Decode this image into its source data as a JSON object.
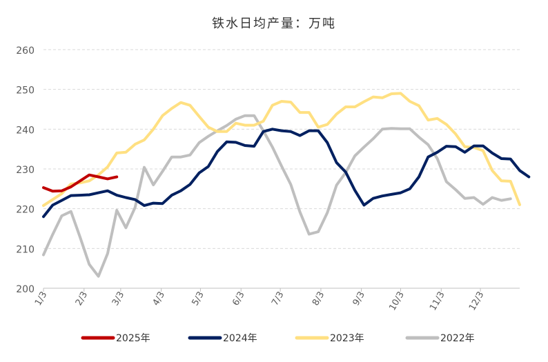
{
  "chart_data": {
    "type": "line",
    "title": "铁水日均产量：万吨",
    "xlabel": "",
    "ylabel": "",
    "ylim": [
      200,
      260
    ],
    "yticks": [
      200,
      210,
      220,
      230,
      240,
      250,
      260
    ],
    "xlim": [
      0,
      52
    ],
    "x_tick_positions": [
      0,
      4.43,
      8.43,
      12.86,
      17.14,
      21.57,
      25.86,
      30.29,
      34.71,
      39.0,
      43.43,
      47.71
    ],
    "x_tick_labels": [
      "1/3",
      "2/3",
      "3/3",
      "4/3",
      "5/3",
      "6/3",
      "7/3",
      "8/3",
      "9/3",
      "10/3",
      "11/3",
      "12/3"
    ],
    "grid": true,
    "legend_position": "bottom",
    "series": [
      {
        "name": "2025年",
        "color": "#C00000",
        "values": [
          225.3,
          224.4,
          224.5,
          225.5,
          227.0,
          228.5,
          228.0,
          227.5,
          228.0
        ]
      },
      {
        "name": "2024年",
        "color": "#002060",
        "values": [
          218.0,
          220.9,
          222.1,
          223.3,
          223.4,
          223.5,
          224.0,
          224.5,
          223.4,
          222.8,
          222.3,
          220.8,
          221.4,
          221.3,
          223.4,
          224.5,
          226.1,
          229.0,
          230.6,
          234.4,
          236.8,
          236.7,
          235.9,
          235.7,
          239.4,
          240.0,
          239.6,
          239.4,
          238.4,
          239.6,
          239.6,
          236.6,
          231.6,
          229.2,
          224.6,
          220.9,
          222.6,
          223.2,
          223.6,
          224.0,
          225.0,
          228.0,
          233.0,
          234.2,
          235.7,
          235.6,
          234.2,
          235.8,
          235.8,
          234.0,
          232.6,
          232.5,
          229.6,
          228.0
        ]
      },
      {
        "name": "2023年",
        "color": "#FFE082",
        "values": [
          220.8,
          222.3,
          223.8,
          226.2,
          226.5,
          227.0,
          228.5,
          230.5,
          234.0,
          234.2,
          236.2,
          237.3,
          240.0,
          243.4,
          245.2,
          246.7,
          246.0,
          243.2,
          240.5,
          239.4,
          239.4,
          241.5,
          241.0,
          241.0,
          242.0,
          246.0,
          247.0,
          246.8,
          244.2,
          244.2,
          240.5,
          241.2,
          243.8,
          245.6,
          245.6,
          246.9,
          248.1,
          247.9,
          248.9,
          249.0,
          247.0,
          245.9,
          242.3,
          242.7,
          241.2,
          238.8,
          235.6,
          235.4,
          234.6,
          229.6,
          227.0,
          226.9,
          221.0
        ]
      },
      {
        "name": "2022年",
        "color": "#BFBFBF",
        "values": [
          208.4,
          213.5,
          218.2,
          219.3,
          212.8,
          206.0,
          203.0,
          208.7,
          219.6,
          215.2,
          220.3,
          230.4,
          226.0,
          229.4,
          233.0,
          233.0,
          233.5,
          236.6,
          238.2,
          239.6,
          240.9,
          242.5,
          243.4,
          243.4,
          239.6,
          235.5,
          230.7,
          226.1,
          219.2,
          213.6,
          214.2,
          219.0,
          225.9,
          229.1,
          233.3,
          235.5,
          237.6,
          240.0,
          240.2,
          240.1,
          240.1,
          238.0,
          236.1,
          232.6,
          226.8,
          224.8,
          222.6,
          222.8,
          221.1,
          222.8,
          222.1,
          222.5
        ]
      }
    ]
  }
}
